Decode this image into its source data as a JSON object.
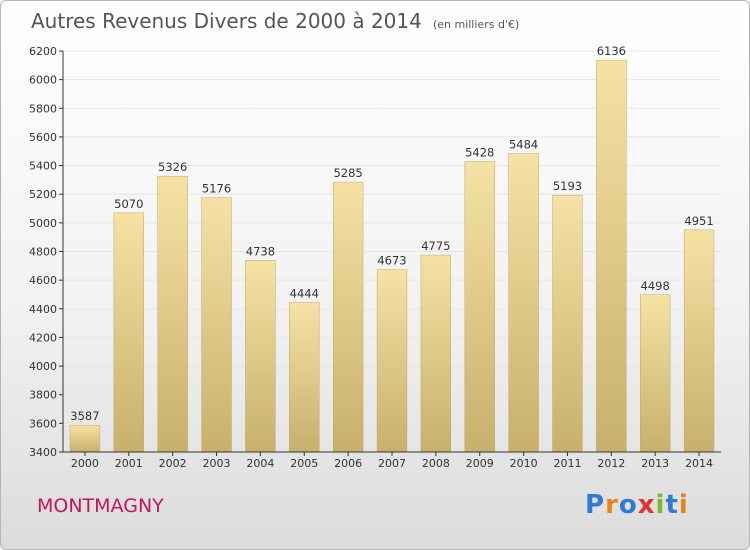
{
  "header": {
    "title": "Autres Revenus Divers de 2000 à 2014",
    "subtitle": "(en milliers d'€)"
  },
  "footer": {
    "commune": "MONTMAGNY",
    "logo_text": "Proxiti"
  },
  "colors": {
    "bar_top": "#f5e2a4",
    "bar_bottom": "#c8b06c",
    "axis": "#333333",
    "grid": "#e6e6e6",
    "commune": "#c2185b",
    "logo_letters": [
      "#2e7bd6",
      "#e8811a",
      "#2e7bd6",
      "#e03030",
      "#7cb82f",
      "#2e7bd6",
      "#e8811a"
    ]
  },
  "chart_data": {
    "type": "bar",
    "categories": [
      "2000",
      "2001",
      "2002",
      "2003",
      "2004",
      "2005",
      "2006",
      "2007",
      "2008",
      "2009",
      "2010",
      "2011",
      "2012",
      "2013",
      "2014"
    ],
    "values": [
      3587,
      5070,
      5326,
      5176,
      4738,
      4444,
      5285,
      4673,
      4775,
      5428,
      5484,
      5193,
      6136,
      4498,
      4951
    ],
    "ylim": [
      3400,
      6200
    ],
    "yticks": [
      3400,
      3600,
      3800,
      4000,
      4200,
      4400,
      4600,
      4800,
      5000,
      5200,
      5400,
      5600,
      5800,
      6000,
      6200
    ],
    "grid": true,
    "data_labels": true,
    "title": "Autres Revenus Divers de 2000 à 2014",
    "xlabel": "",
    "ylabel": ""
  }
}
